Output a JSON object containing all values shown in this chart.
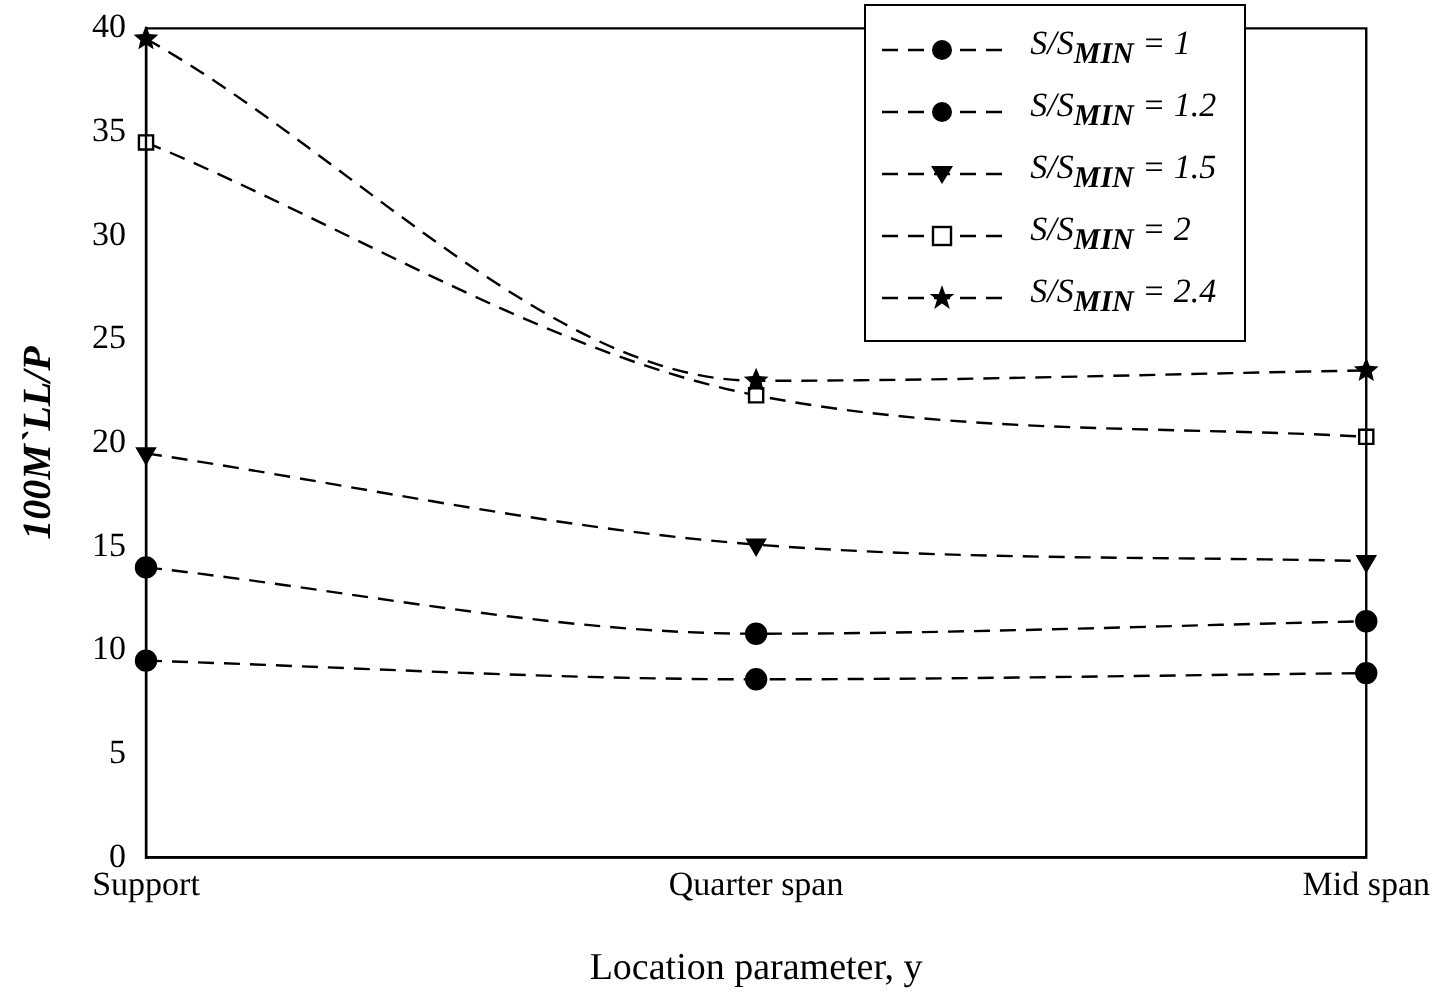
{
  "chart_data": {
    "type": "line",
    "xlabel": "Location parameter, y",
    "ylabel": "100M`LL/P",
    "categories": [
      "Support",
      "Quarter span",
      "Mid span"
    ],
    "series": [
      {
        "name": "S/S$_{MIN}$ = 1",
        "color": "#000000",
        "marker": "circle",
        "line_style": "dashed",
        "values": [
          9.5,
          8.6,
          8.9
        ]
      },
      {
        "name": "S/S$_{MIN}$ = 1.2",
        "color": "#000000",
        "marker": "circle",
        "line_style": "dashed",
        "values": [
          14.0,
          10.8,
          11.4
        ]
      },
      {
        "name": "S/S$_{MIN}$ = 1.5",
        "color": "#000000",
        "marker": "triangle",
        "line_style": "dashed",
        "values": [
          19.5,
          15.1,
          14.3
        ]
      },
      {
        "name": "S/S$_{MIN}$ = 2",
        "color": "#000000",
        "marker": "square",
        "line_style": "dashed",
        "values": [
          34.5,
          22.3,
          20.3
        ]
      },
      {
        "name": "S/S$_{MIN}$ = 2.4",
        "color": "#000000",
        "marker": "star",
        "line_style": "dashed",
        "values": [
          39.5,
          23.0,
          23.5
        ]
      }
    ],
    "ylim": [
      0,
      40
    ],
    "yticks": [
      0,
      5,
      10,
      15,
      20,
      25,
      30,
      35,
      40
    ],
    "grid": false,
    "legend": "top right"
  }
}
